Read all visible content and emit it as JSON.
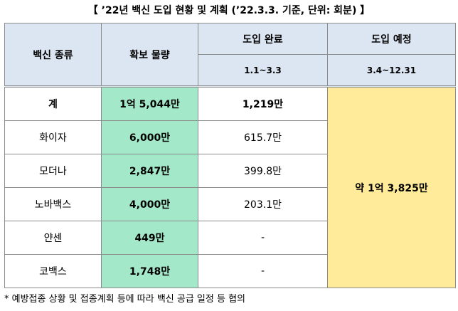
{
  "title": "【 ’22년 백신 도입 현황 및 계획 (’22.3.3. 기준, 단위: 회분) 】",
  "table": {
    "header": {
      "vaccine_type": "백신 종류",
      "secured_quantity": "확보 물량",
      "introduced": "도입 완료",
      "planned": "도입 예정",
      "introduced_period": "1.1~3.3",
      "planned_period": "3.4~12.31"
    },
    "rows": [
      {
        "name": "계",
        "secured": "1억 5,044만",
        "introduced": "1,219만"
      },
      {
        "name": "화이자",
        "secured": "6,000만",
        "introduced": "615.7만"
      },
      {
        "name": "모더나",
        "secured": "2,847만",
        "introduced": "399.8만"
      },
      {
        "name": "노바백스",
        "secured": "4,000만",
        "introduced": "203.1만"
      },
      {
        "name": "얀센",
        "secured": "449만",
        "introduced": "-"
      },
      {
        "name": "코백스",
        "secured": "1,748만",
        "introduced": "-"
      }
    ],
    "planned_total": "약 1억 3,825만"
  },
  "footnote": "* 예방접종 상황 및 접종계획 등에 따라 백신 공급 일정 등 협의"
}
